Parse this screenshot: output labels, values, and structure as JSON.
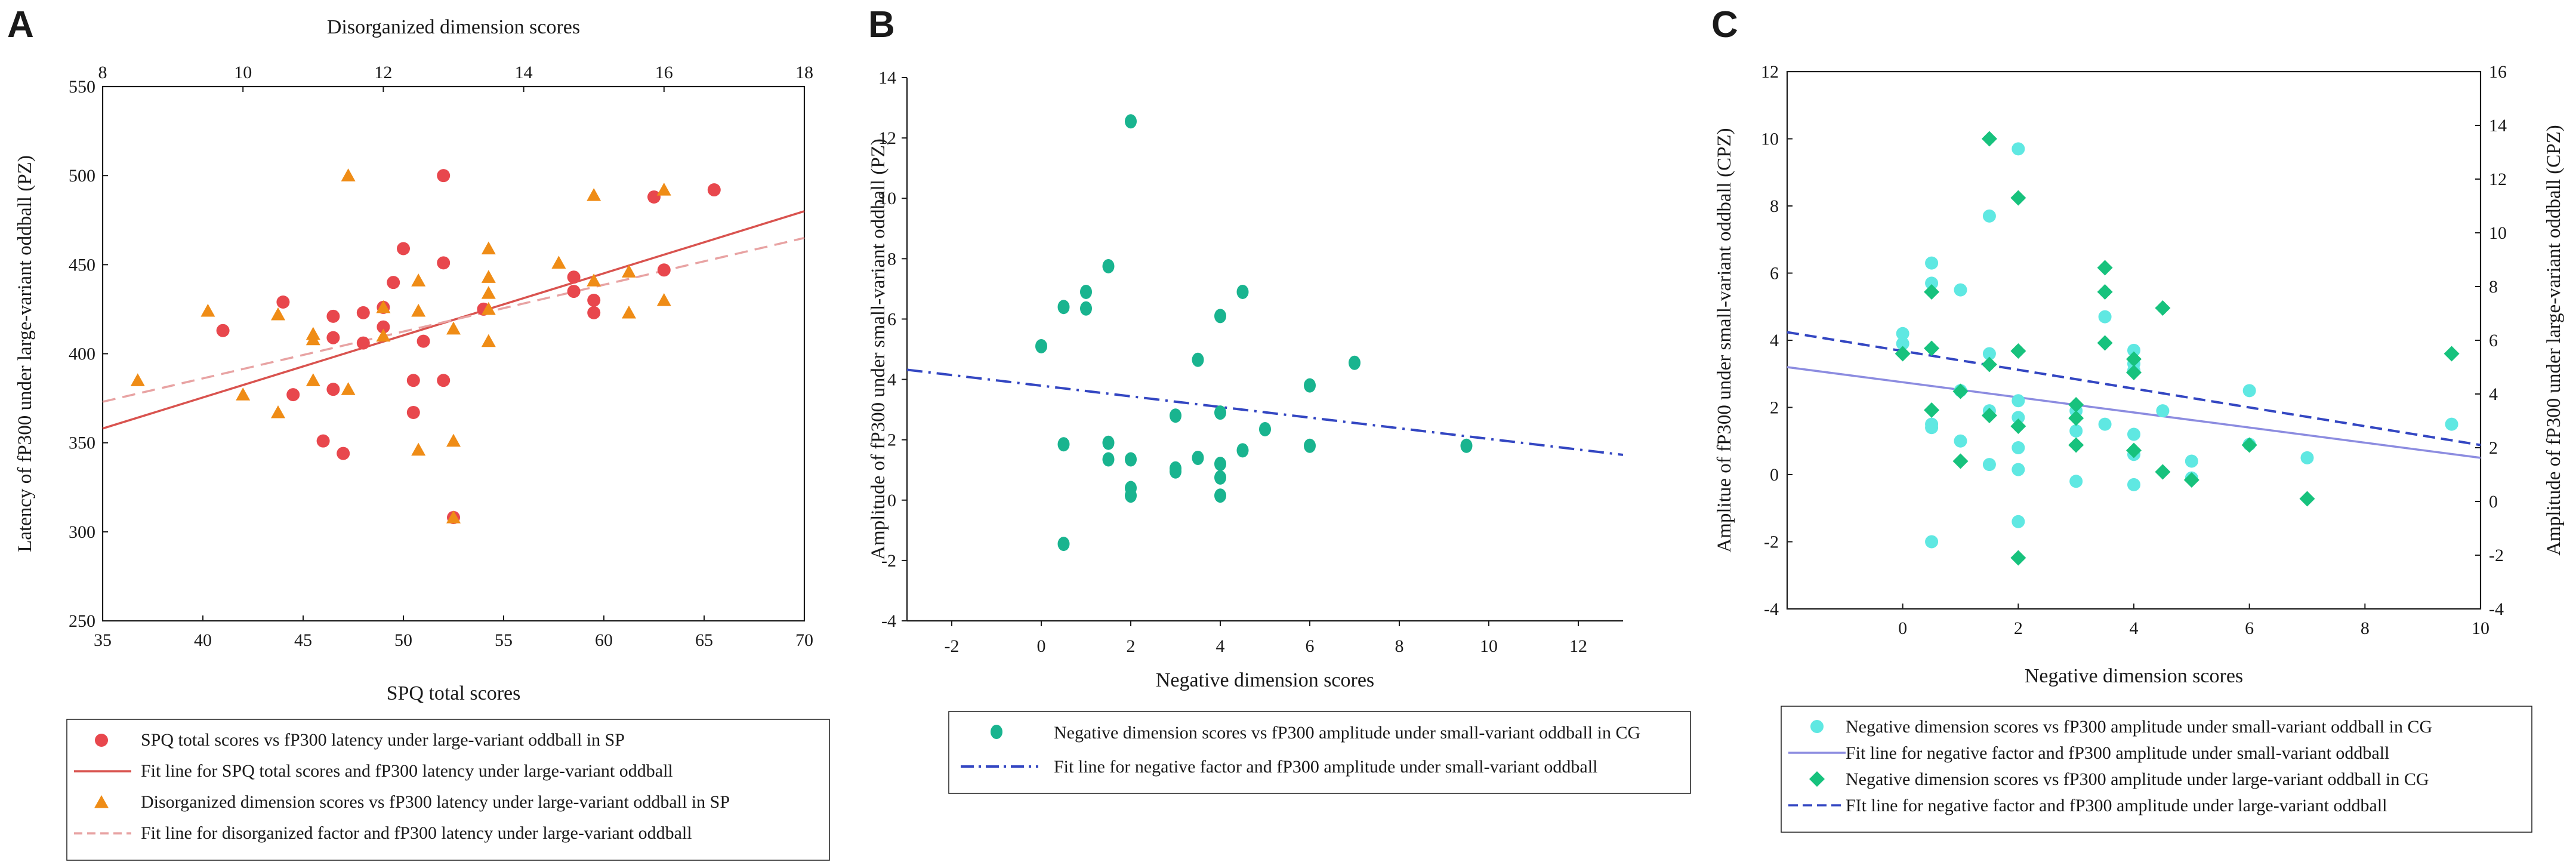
{
  "figure": {
    "panels": [
      "A",
      "B",
      "C"
    ]
  },
  "colors": {
    "red_marker": "#e8474d",
    "red_line": "#d9534f",
    "pink_line": "#e8a3a3",
    "orange_marker": "#ef8c16",
    "teal_marker": "#19b48f",
    "cyan_marker": "#5fe8e2",
    "green_diamond": "#17c27d",
    "blue_dash": "#3346c2",
    "lavender_line": "#8c8ce0",
    "axis": "#1a1a1a"
  },
  "chart_data": [
    {
      "panel": "A",
      "type": "scatter",
      "xlabel": "SPQ total scores",
      "x2label": "Disorganized dimension scores",
      "ylabel": "Latency of fP300 under large-variant oddball (PZ)",
      "xlim": [
        35,
        70
      ],
      "x2lim": [
        8,
        18
      ],
      "ylim": [
        250,
        550
      ],
      "xticks": [
        35,
        40,
        45,
        50,
        55,
        60,
        65,
        70
      ],
      "x2ticks": [
        8,
        10,
        12,
        14,
        16,
        18
      ],
      "yticks": [
        250,
        300,
        350,
        400,
        450,
        500,
        550
      ],
      "series": [
        {
          "name": "SPQ total scores vs fP300 latency under large-variant oddball in SP",
          "marker": "circle",
          "axis": "x",
          "points": [
            [
              41,
              413
            ],
            [
              44,
              429
            ],
            [
              44.5,
              377
            ],
            [
              46,
              351
            ],
            [
              46.5,
              421
            ],
            [
              46.5,
              409
            ],
            [
              46.5,
              380
            ],
            [
              47,
              344
            ],
            [
              48,
              423
            ],
            [
              48,
              406
            ],
            [
              49,
              426
            ],
            [
              49,
              415
            ],
            [
              49.5,
              440
            ],
            [
              50,
              459
            ],
            [
              50.5,
              385
            ],
            [
              50.5,
              367
            ],
            [
              51,
              407
            ],
            [
              52,
              500
            ],
            [
              52,
              451
            ],
            [
              52,
              385
            ],
            [
              52.5,
              308
            ],
            [
              54,
              425
            ],
            [
              58.5,
              443
            ],
            [
              58.5,
              435
            ],
            [
              59.5,
              430
            ],
            [
              59.5,
              423
            ],
            [
              62.5,
              488
            ],
            [
              63,
              447
            ],
            [
              65.5,
              492
            ]
          ]
        },
        {
          "name": "Disorganized dimension scores vs fP300 latency under large-variant oddball in SP",
          "marker": "triangle",
          "axis": "x2",
          "points": [
            [
              8.5,
              385
            ],
            [
              9.5,
              424
            ],
            [
              10,
              377
            ],
            [
              10.5,
              367
            ],
            [
              10.5,
              422
            ],
            [
              11,
              411
            ],
            [
              11,
              408
            ],
            [
              11,
              385
            ],
            [
              11.5,
              500
            ],
            [
              11.5,
              380
            ],
            [
              12,
              426
            ],
            [
              12,
              410
            ],
            [
              12.5,
              441
            ],
            [
              12.5,
              424
            ],
            [
              12.5,
              346
            ],
            [
              13,
              414
            ],
            [
              13,
              351
            ],
            [
              13,
              308
            ],
            [
              13.5,
              459
            ],
            [
              13.5,
              443
            ],
            [
              13.5,
              434
            ],
            [
              13.5,
              425
            ],
            [
              13.5,
              407
            ],
            [
              14.5,
              451
            ],
            [
              15,
              489
            ],
            [
              15,
              441
            ],
            [
              15.5,
              446
            ],
            [
              15.5,
              423
            ],
            [
              16,
              492
            ],
            [
              16,
              430
            ]
          ]
        }
      ],
      "fit_lines": [
        {
          "name": "Fit line for SPQ total scores and fP300 latency under large-variant oddball",
          "axis": "x",
          "style": "solid",
          "endpoints": [
            [
              35,
              358
            ],
            [
              70,
              480
            ]
          ]
        },
        {
          "name": "Fit line for disorganized factor and fP300 latency under large-variant oddball",
          "axis": "x2",
          "style": "dashed",
          "endpoints": [
            [
              8,
              373
            ],
            [
              18,
              465
            ]
          ]
        }
      ],
      "legend": "below"
    },
    {
      "panel": "B",
      "type": "scatter",
      "xlabel": "Negative dimension scores",
      "ylabel": "Amplitude of fP300 under small-variant oddball (PZ)",
      "xlim": [
        -3,
        13
      ],
      "ylim": [
        -4,
        14
      ],
      "xticks": [
        -2,
        0,
        2,
        4,
        6,
        8,
        10,
        12
      ],
      "yticks": [
        -4,
        -2,
        0,
        2,
        4,
        6,
        8,
        10,
        12,
        14
      ],
      "series": [
        {
          "name": "Negative dimension scores vs fP300 amplitude under small-variant oddball in CG",
          "marker": "ellipse",
          "points": [
            [
              0,
              5.1
            ],
            [
              0.5,
              6.4
            ],
            [
              0.5,
              1.85
            ],
            [
              0.5,
              -1.45
            ],
            [
              1,
              6.9
            ],
            [
              1,
              6.35
            ],
            [
              1.5,
              7.75
            ],
            [
              1.5,
              1.9
            ],
            [
              1.5,
              1.35
            ],
            [
              2,
              12.55
            ],
            [
              2,
              1.35
            ],
            [
              2,
              0.4
            ],
            [
              2,
              0.15
            ],
            [
              3,
              2.8
            ],
            [
              3,
              1.05
            ],
            [
              3,
              0.95
            ],
            [
              3.5,
              4.65
            ],
            [
              3.5,
              1.4
            ],
            [
              4,
              6.1
            ],
            [
              4,
              2.9
            ],
            [
              4,
              1.2
            ],
            [
              4,
              0.75
            ],
            [
              4,
              0.15
            ],
            [
              4.5,
              6.9
            ],
            [
              4.5,
              1.65
            ],
            [
              5,
              2.35
            ],
            [
              6,
              3.8
            ],
            [
              6,
              1.8
            ],
            [
              7,
              4.55
            ],
            [
              9.5,
              1.8
            ]
          ]
        }
      ],
      "fit_lines": [
        {
          "name": "Fit line for negative factor and fP300 amplitude under small-variant oddball",
          "style": "dashdot",
          "endpoints": [
            [
              -3,
              4.32
            ],
            [
              13,
              1.5
            ]
          ]
        }
      ],
      "legend": "below"
    },
    {
      "panel": "C",
      "type": "scatter",
      "xlabel": "Negative dimension scores",
      "ylabel": "Amplitue of fP300 under small-variant oddball (CPZ)",
      "y2label": "Amplitude of fP300 under large-variant oddball (CPZ)",
      "xlim": [
        -2,
        10
      ],
      "ylim": [
        -4,
        12
      ],
      "y2lim": [
        -4,
        16
      ],
      "xticks": [
        0,
        2,
        4,
        6,
        8,
        10
      ],
      "yticks": [
        -4,
        -2,
        0,
        2,
        4,
        6,
        8,
        10,
        12
      ],
      "y2ticks": [
        -4,
        -2,
        0,
        2,
        4,
        6,
        8,
        10,
        12,
        14,
        16
      ],
      "series": [
        {
          "name": "Negative dimension scores vs fP300 amplitude under small-variant oddball in CG",
          "marker": "circle",
          "axis": "y",
          "points": [
            [
              0,
              4.2
            ],
            [
              0,
              3.9
            ],
            [
              0.5,
              6.3
            ],
            [
              0.5,
              5.7
            ],
            [
              0.5,
              1.5
            ],
            [
              0.5,
              1.4
            ],
            [
              0.5,
              -2
            ],
            [
              1,
              5.5
            ],
            [
              1,
              2.5
            ],
            [
              1,
              1
            ],
            [
              1.5,
              7.7
            ],
            [
              1.5,
              3.6
            ],
            [
              1.5,
              1.9
            ],
            [
              1.5,
              0.3
            ],
            [
              2,
              9.7
            ],
            [
              2,
              2.2
            ],
            [
              2,
              1.7
            ],
            [
              2,
              0.8
            ],
            [
              2,
              0.15
            ],
            [
              2,
              -1.4
            ],
            [
              3,
              1.9
            ],
            [
              3,
              1.3
            ],
            [
              3,
              -0.2
            ],
            [
              3.5,
              4.7
            ],
            [
              3.5,
              1.5
            ],
            [
              4,
              3.7
            ],
            [
              4,
              3.3
            ],
            [
              4,
              3.1
            ],
            [
              4,
              1.2
            ],
            [
              4,
              0.6
            ],
            [
              4,
              -0.3
            ],
            [
              4.5,
              1.9
            ],
            [
              5,
              0.4
            ],
            [
              5,
              -0.1
            ],
            [
              6,
              2.5
            ],
            [
              6,
              0.9
            ],
            [
              7,
              0.5
            ],
            [
              9.5,
              1.5
            ]
          ]
        },
        {
          "name": "Negative dimension scores vs fP300 amplitude under large-variant oddball in CG",
          "marker": "diamond",
          "axis": "y2",
          "points": [
            [
              0,
              5.5
            ],
            [
              0.5,
              7.8
            ],
            [
              0.5,
              5.7
            ],
            [
              0.5,
              3.4
            ],
            [
              1,
              4.1
            ],
            [
              1,
              1.5
            ],
            [
              1.5,
              13.5
            ],
            [
              1.5,
              5.1
            ],
            [
              1.5,
              3.2
            ],
            [
              2,
              11.3
            ],
            [
              2,
              5.6
            ],
            [
              2,
              2.8
            ],
            [
              2,
              -2.1
            ],
            [
              3,
              3.6
            ],
            [
              3,
              3.1
            ],
            [
              3,
              2.1
            ],
            [
              3.5,
              8.7
            ],
            [
              3.5,
              7.8
            ],
            [
              3.5,
              5.9
            ],
            [
              4,
              5.3
            ],
            [
              4,
              4.8
            ],
            [
              4,
              1.9
            ],
            [
              4.5,
              7.2
            ],
            [
              4.5,
              1.1
            ],
            [
              5,
              0.8
            ],
            [
              6,
              2.1
            ],
            [
              7,
              0.1
            ],
            [
              9.5,
              5.5
            ]
          ]
        }
      ],
      "fit_lines": [
        {
          "name": "Fit line for negative factor and fP300 amplitude under small-variant oddball",
          "axis": "y",
          "style": "solid",
          "endpoints": [
            [
              -2,
              3.2
            ],
            [
              10,
              0.5
            ]
          ]
        },
        {
          "name": "FIt line for negative factor and fP300 amplitude under large-variant oddball",
          "axis": "y2",
          "style": "dashed",
          "endpoints": [
            [
              -2,
              6.3
            ],
            [
              10,
              2.1
            ]
          ]
        }
      ],
      "legend": "below"
    }
  ]
}
